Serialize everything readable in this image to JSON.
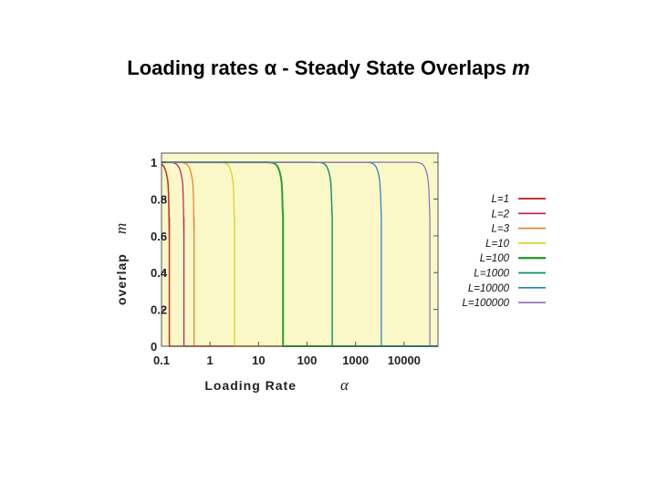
{
  "title_main": "Loading rates α  -  Steady State Overlaps",
  "title_var": "m",
  "chart_data": {
    "type": "line",
    "xscale": "log",
    "xlim": [
      0.1,
      50000
    ],
    "ylim": [
      0,
      1.05
    ],
    "xticks": [
      {
        "value": 0.1,
        "label": "0.1"
      },
      {
        "value": 1,
        "label": "1"
      },
      {
        "value": 10,
        "label": "10"
      },
      {
        "value": 100,
        "label": "100"
      },
      {
        "value": 1000,
        "label": "1000"
      },
      {
        "value": 10000,
        "label": "10000"
      }
    ],
    "yticks": [
      {
        "value": 0,
        "label": "0"
      },
      {
        "value": 0.2,
        "label": "0.2"
      },
      {
        "value": 0.4,
        "label": "0.4"
      },
      {
        "value": 0.6,
        "label": "0.6"
      },
      {
        "value": 0.8,
        "label": "0.8"
      },
      {
        "value": 1,
        "label": "1"
      }
    ],
    "xlabel": "Loading Rate",
    "xlabel_var": "α",
    "ylabel": "overlap",
    "ylabel_var": "m",
    "grid": false,
    "legend_position": "right",
    "background": "#fbf8c8",
    "series": [
      {
        "name": "L=1",
        "color": "#c0392b",
        "width": 1.6,
        "critical_alpha": 0.145
      },
      {
        "name": "L=2",
        "color": "#c2185b",
        "width": 1.2,
        "critical_alpha": 0.29
      },
      {
        "name": "L=3",
        "color": "#e67e22",
        "width": 1.2,
        "critical_alpha": 0.47
      },
      {
        "name": "L=10",
        "color": "#e2d22f",
        "width": 1.4,
        "critical_alpha": 3.2
      },
      {
        "name": "L=100",
        "color": "#2e9e2e",
        "width": 2.0,
        "critical_alpha": 32
      },
      {
        "name": "L=1000",
        "color": "#0b8f6b",
        "width": 1.4,
        "critical_alpha": 330
      },
      {
        "name": "L=10000",
        "color": "#1f7fc4",
        "width": 1.2,
        "critical_alpha": 3400
      },
      {
        "name": "L=100000",
        "color": "#8a6bbe",
        "width": 1.2,
        "critical_alpha": 34000
      }
    ]
  }
}
